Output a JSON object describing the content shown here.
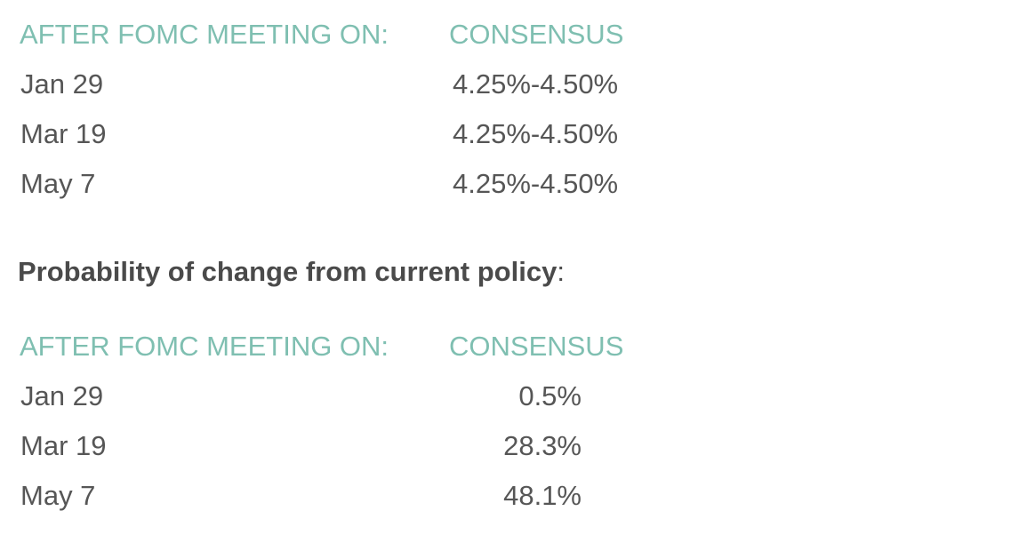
{
  "table1": {
    "headers": [
      "AFTER FOMC MEETING ON:",
      "CONSENSUS"
    ],
    "rows": [
      {
        "date": "Jan 29",
        "value": "4.25%-4.50%"
      },
      {
        "date": "Mar 19",
        "value": "4.25%-4.50%"
      },
      {
        "date": "May 7",
        "value": "4.25%-4.50%"
      }
    ]
  },
  "probability_heading": {
    "text": "Probability of change from current policy",
    "suffix": ":"
  },
  "table2": {
    "headers": [
      "AFTER FOMC MEETING ON:",
      "CONSENSUS"
    ],
    "rows": [
      {
        "date": "Jan 29",
        "value": "0.5%"
      },
      {
        "date": "Mar 19",
        "value": "28.3%"
      },
      {
        "date": "May 7",
        "value": "48.1%"
      }
    ]
  },
  "colors": {
    "header_teal": "#7fbfb1",
    "body_gray": "#565656"
  }
}
